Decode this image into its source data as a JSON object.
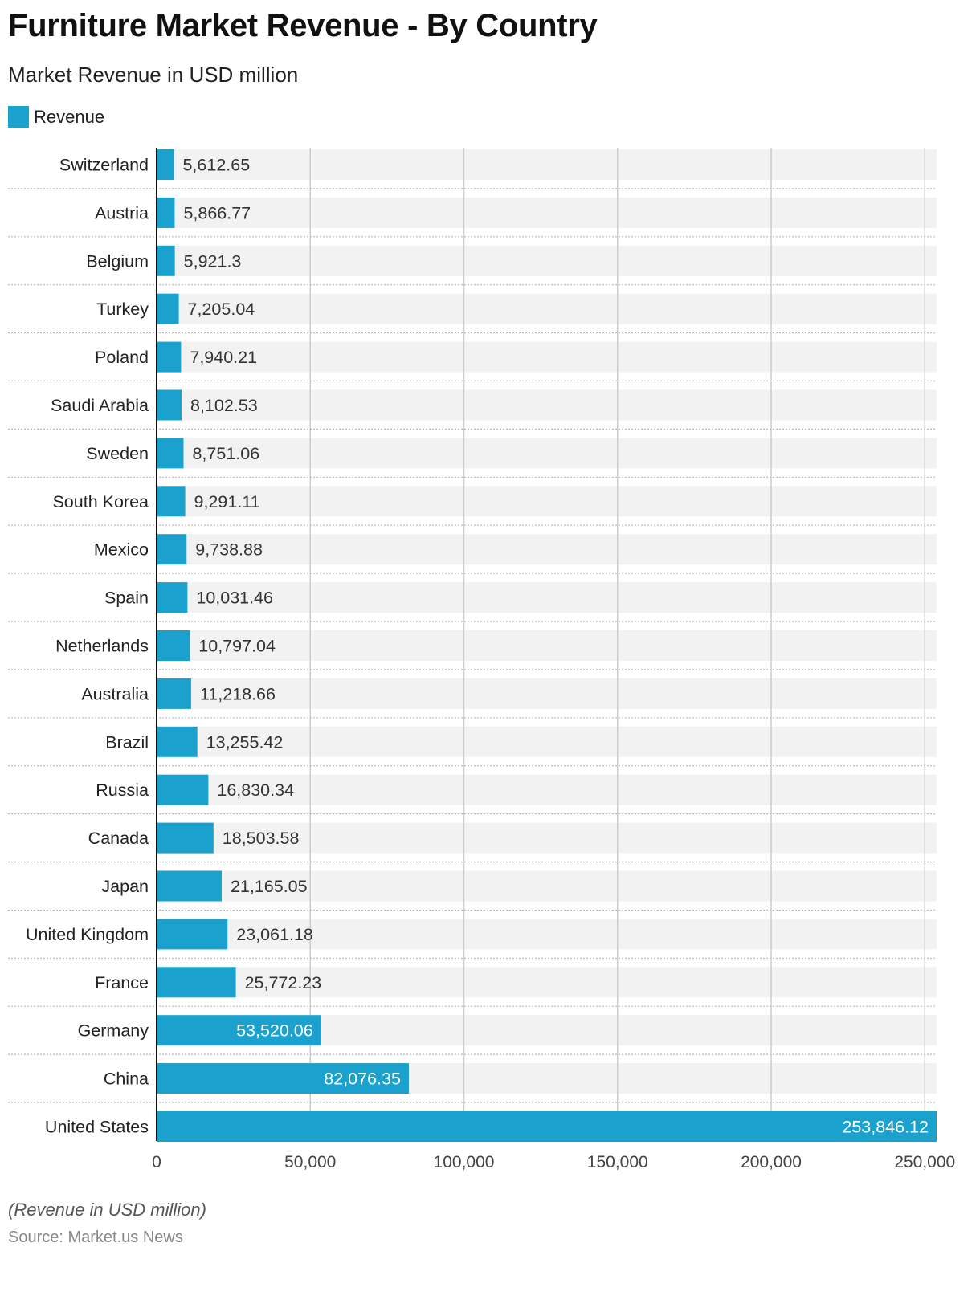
{
  "chart_data": {
    "type": "bar",
    "orientation": "horizontal",
    "title": "Furniture Market Revenue - By Country",
    "subtitle": "Market Revenue in USD million",
    "legend": [
      "Revenue"
    ],
    "legend_position": "top-left",
    "categories": [
      "Switzerland",
      "Austria",
      "Belgium",
      "Turkey",
      "Poland",
      "Saudi Arabia",
      "Sweden",
      "South Korea",
      "Mexico",
      "Spain",
      "Netherlands",
      "Australia",
      "Brazil",
      "Russia",
      "Canada",
      "Japan",
      "United Kingdom",
      "France",
      "Germany",
      "China",
      "United States"
    ],
    "series": [
      {
        "name": "Revenue",
        "values": [
          5612.65,
          5866.77,
          5921.3,
          7205.04,
          7940.21,
          8102.53,
          8751.06,
          9291.11,
          9738.88,
          10031.46,
          10797.04,
          11218.66,
          13255.42,
          16830.34,
          18503.58,
          21165.05,
          23061.18,
          25772.23,
          53520.06,
          82076.35,
          253846.12
        ],
        "labels": [
          "5,612.65",
          "5,866.77",
          "5,921.3",
          "7,205.04",
          "7,940.21",
          "8,102.53",
          "8,751.06",
          "9,291.11",
          "9,738.88",
          "10,031.46",
          "10,797.04",
          "11,218.66",
          "13,255.42",
          "16,830.34",
          "18,503.58",
          "21,165.05",
          "23,061.18",
          "25,772.23",
          "53,520.06",
          "82,076.35",
          "253,846.12"
        ]
      }
    ],
    "xlim": [
      0,
      253846.12
    ],
    "xticks": [
      0,
      50000,
      100000,
      150000,
      200000,
      250000
    ],
    "xtick_labels": [
      "0",
      "50,000",
      "100,000",
      "150,000",
      "200,000",
      "250,000"
    ],
    "grid": true,
    "xlabel": "",
    "ylabel": "",
    "colors": {
      "bar": "#1aa1cd",
      "band": "#f2f2f2",
      "grid": "#cccccc"
    }
  },
  "footer": {
    "note": "(Revenue in USD million)",
    "source": "Source: Market.us News"
  }
}
